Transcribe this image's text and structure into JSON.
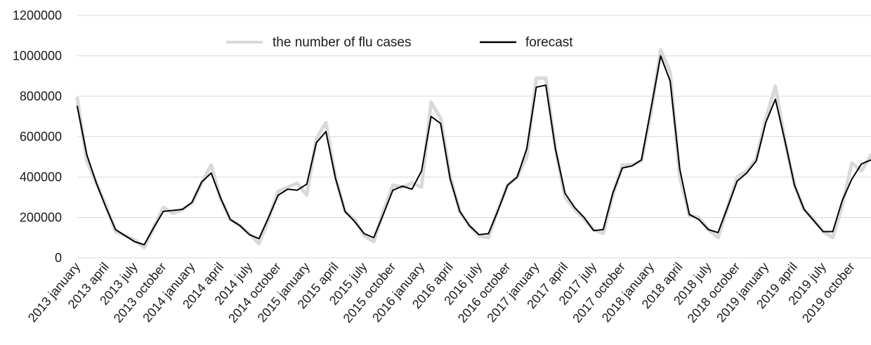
{
  "chart_data": {
    "type": "line",
    "title": "",
    "xlabel": "",
    "ylabel": "",
    "ylim": [
      0,
      1200000
    ],
    "yticks": [
      "0",
      "200000",
      "400000",
      "600000",
      "800000",
      "1000000",
      "1200000"
    ],
    "grid": true,
    "legend_position": "top-center",
    "categories": [
      "2013 january",
      "2013 february",
      "2013 march",
      "2013 april",
      "2013 may",
      "2013 june",
      "2013 july",
      "2013 august",
      "2013 september",
      "2013 october",
      "2013 november",
      "2013 december",
      "2014 january",
      "2014 february",
      "2014 march",
      "2014 april",
      "2014 may",
      "2014 june",
      "2014 july",
      "2014 august",
      "2014 september",
      "2014 october",
      "2014 november",
      "2014 december",
      "2015 january",
      "2015 february",
      "2015 march",
      "2015 april",
      "2015 may",
      "2015 june",
      "2015 july",
      "2015 august",
      "2015 september",
      "2015 october",
      "2015 november",
      "2015 december",
      "2016 january",
      "2016 february",
      "2016 march",
      "2016 april",
      "2016 may",
      "2016 june",
      "2016 july",
      "2016 august",
      "2016 september",
      "2016 october",
      "2016 november",
      "2016 december",
      "2017 january",
      "2017 february",
      "2017 march",
      "2017 april",
      "2017 may",
      "2017 june",
      "2017 july",
      "2017 august",
      "2017 september",
      "2017 october",
      "2017 november",
      "2017 december",
      "2018 january",
      "2018 february",
      "2018 march",
      "2018 april",
      "2018 may",
      "2018 june",
      "2018 july",
      "2018 august",
      "2018 september",
      "2018 october",
      "2018 november",
      "2018 december",
      "2019 january",
      "2019 february",
      "2019 march",
      "2019 april",
      "2019 may",
      "2019 june",
      "2019 july",
      "2019 august",
      "2019 september",
      "2019 october",
      "2019 november",
      "2019 december"
    ],
    "xtick_labels": [
      {
        "index": 0,
        "label": "2013 january"
      },
      {
        "index": 3,
        "label": "2013 april"
      },
      {
        "index": 6,
        "label": "2013 july"
      },
      {
        "index": 9,
        "label": "2013 october"
      },
      {
        "index": 12,
        "label": "2014 january"
      },
      {
        "index": 15,
        "label": "2014 april"
      },
      {
        "index": 18,
        "label": "2014 july"
      },
      {
        "index": 21,
        "label": "2014 october"
      },
      {
        "index": 24,
        "label": "2015 january"
      },
      {
        "index": 27,
        "label": "2015 april"
      },
      {
        "index": 30,
        "label": "2015 july"
      },
      {
        "index": 33,
        "label": "2015 october"
      },
      {
        "index": 36,
        "label": "2016 january"
      },
      {
        "index": 39,
        "label": "2016 april"
      },
      {
        "index": 42,
        "label": "2016 july"
      },
      {
        "index": 45,
        "label": "2016 october"
      },
      {
        "index": 48,
        "label": "2017 january"
      },
      {
        "index": 51,
        "label": "2017 april"
      },
      {
        "index": 54,
        "label": "2017 july"
      },
      {
        "index": 57,
        "label": "2017 october"
      },
      {
        "index": 60,
        "label": "2018 january"
      },
      {
        "index": 63,
        "label": "2018 april"
      },
      {
        "index": 66,
        "label": "2018 july"
      },
      {
        "index": 69,
        "label": "2018 october"
      },
      {
        "index": 72,
        "label": "2019 january"
      },
      {
        "index": 75,
        "label": "2019 april"
      },
      {
        "index": 78,
        "label": "2019 july"
      },
      {
        "index": 81,
        "label": "2019 october"
      }
    ],
    "series": [
      {
        "name": "the number of flu cases",
        "color": "#d9d9d9",
        "values": [
          790000,
          480000,
          370000,
          260000,
          130000,
          110000,
          90000,
          50000,
          150000,
          250000,
          220000,
          240000,
          270000,
          370000,
          460000,
          290000,
          190000,
          160000,
          120000,
          70000,
          190000,
          330000,
          350000,
          370000,
          310000,
          590000,
          670000,
          400000,
          230000,
          190000,
          110000,
          80000,
          230000,
          360000,
          350000,
          370000,
          350000,
          770000,
          690000,
          400000,
          230000,
          160000,
          110000,
          100000,
          240000,
          360000,
          400000,
          500000,
          890000,
          890000,
          540000,
          300000,
          240000,
          190000,
          140000,
          120000,
          310000,
          460000,
          460000,
          480000,
          720000,
          1030000,
          920000,
          400000,
          210000,
          200000,
          140000,
          100000,
          250000,
          400000,
          430000,
          490000,
          690000,
          850000,
          580000,
          360000,
          240000,
          190000,
          130000,
          100000,
          260000,
          470000,
          430000,
          510000
        ]
      },
      {
        "name": "forecast",
        "color": "#000000",
        "values": [
          750000,
          510000,
          370000,
          250000,
          140000,
          110000,
          80000,
          65000,
          150000,
          230000,
          235000,
          240000,
          275000,
          375000,
          420000,
          295000,
          190000,
          160000,
          115000,
          95000,
          200000,
          310000,
          340000,
          335000,
          365000,
          570000,
          625000,
          395000,
          230000,
          180000,
          120000,
          100000,
          215000,
          335000,
          355000,
          340000,
          430000,
          700000,
          665000,
          390000,
          230000,
          160000,
          115000,
          120000,
          235000,
          360000,
          400000,
          540000,
          845000,
          855000,
          540000,
          320000,
          250000,
          200000,
          135000,
          140000,
          320000,
          445000,
          455000,
          485000,
          740000,
          1000000,
          875000,
          440000,
          215000,
          190000,
          140000,
          125000,
          250000,
          380000,
          420000,
          480000,
          670000,
          785000,
          580000,
          360000,
          240000,
          185000,
          130000,
          130000,
          285000,
          390000,
          465000,
          485000
        ]
      }
    ]
  }
}
